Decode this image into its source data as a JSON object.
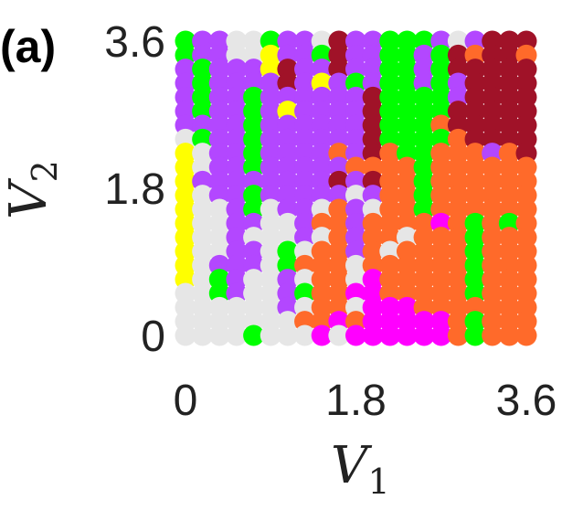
{
  "chart_data": {
    "type": "scatter",
    "panel_label": "(a)",
    "xlabel": {
      "main": "V",
      "sub": "1"
    },
    "ylabel": {
      "main": "V",
      "sub": "2"
    },
    "xlim": [
      0,
      3.6
    ],
    "ylim": [
      0,
      3.6
    ],
    "xticks": [
      "0",
      "1.8",
      "3.6"
    ],
    "xtick_values": [
      0,
      1.8,
      3.6
    ],
    "yticks": [
      "0",
      "1.8",
      "3.6"
    ],
    "ytick_values": [
      0,
      1.8,
      3.6
    ],
    "grid": false,
    "grid_step": 0.1714,
    "palette": {
      "W": "#e6e6e6",
      "G": "#00ff00",
      "P": "#b347ff",
      "Y": "#ffff00",
      "O": "#ff6a2a",
      "R": "#a01228",
      "M": "#ff00ff"
    },
    "rows_top_to_bottom": [
      "GPPWWGPPWRPPGGGPWPRRR",
      "GPPWWYPPGRPPGGPGRORRO",
      "PGPPPYRPPRPPGGPGRRRRR",
      "PGPPPPRPYPGPGGPGPRRRR",
      "PGPPGPPPPPPRGGGGPRRRR",
      "PGPPGPYPPPPRGGGGRRRRR",
      "PPPPGPPPPPPRGGGORRRRR",
      "WGPPGPPPPPPRGGGGORRRR",
      "YWPPGPPPPOPROGGOOOPOR",
      "YWPPGPPPPPOOOOGOOOOOO",
      "YPPPPPPPPRPROOGOOOOOO",
      "YWPPGPPPPPWPOOGOOOOOO",
      "YWWPGWPPWOPWOOGOOOOOO",
      "YWWPPWWPOOPOOOOMOGOGO",
      "YWWPWWWPWOPOOWOOOGOOO",
      "YWWPPWGWOOPOWOOOOGOOO",
      "YWPPPWGOOOWOOOOOOGOOO",
      "YWGPWWPWOOWMOOOOOGOOO",
      "WWGPWWPGOOMMOOOOOGOOO",
      "WWWWWWPWOOWMMMOOOOOOO",
      "WWWWWWWOOMOMMMMMOGOOO",
      "WWWWGWWWMWMMMMMMOGOOO"
    ]
  }
}
